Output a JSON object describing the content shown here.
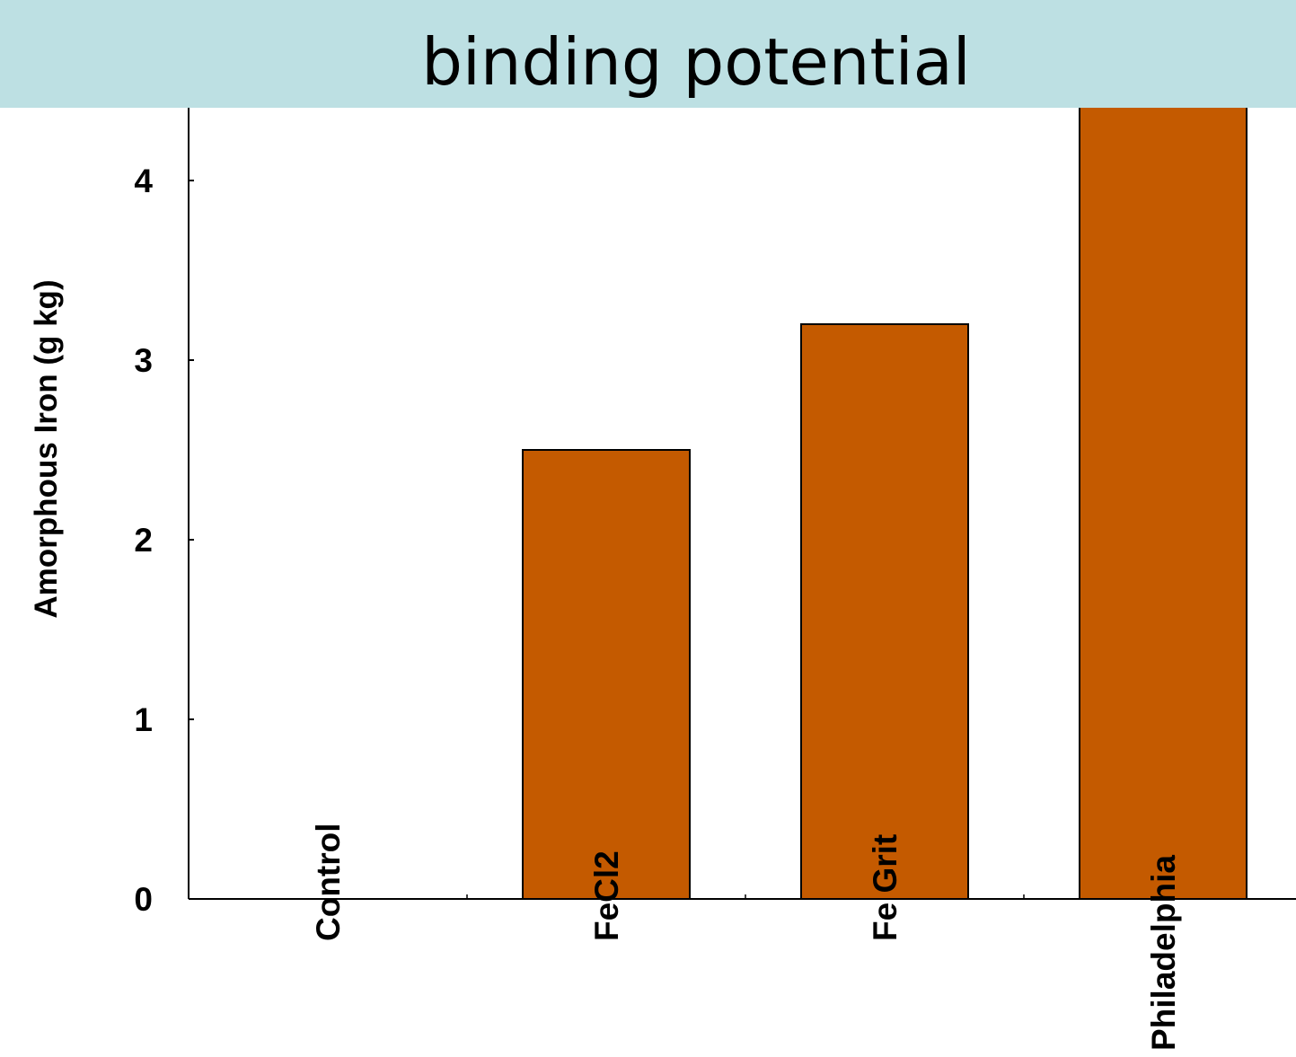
{
  "banner": {
    "text": "binding potential",
    "background": "#bde0e3"
  },
  "chart_data": {
    "type": "bar",
    "categories": [
      "Control",
      "FeCl2",
      "Fe Grit",
      "Philadelphia"
    ],
    "values": [
      0,
      2.5,
      3.2,
      4.5
    ],
    "ylabel": "Amorphous Iron (g kg)",
    "xlabel": "",
    "ylim": [
      0,
      5
    ],
    "yticks": [
      0,
      1,
      2,
      3,
      4
    ],
    "bar_color": "#c45a00",
    "grid": false
  }
}
